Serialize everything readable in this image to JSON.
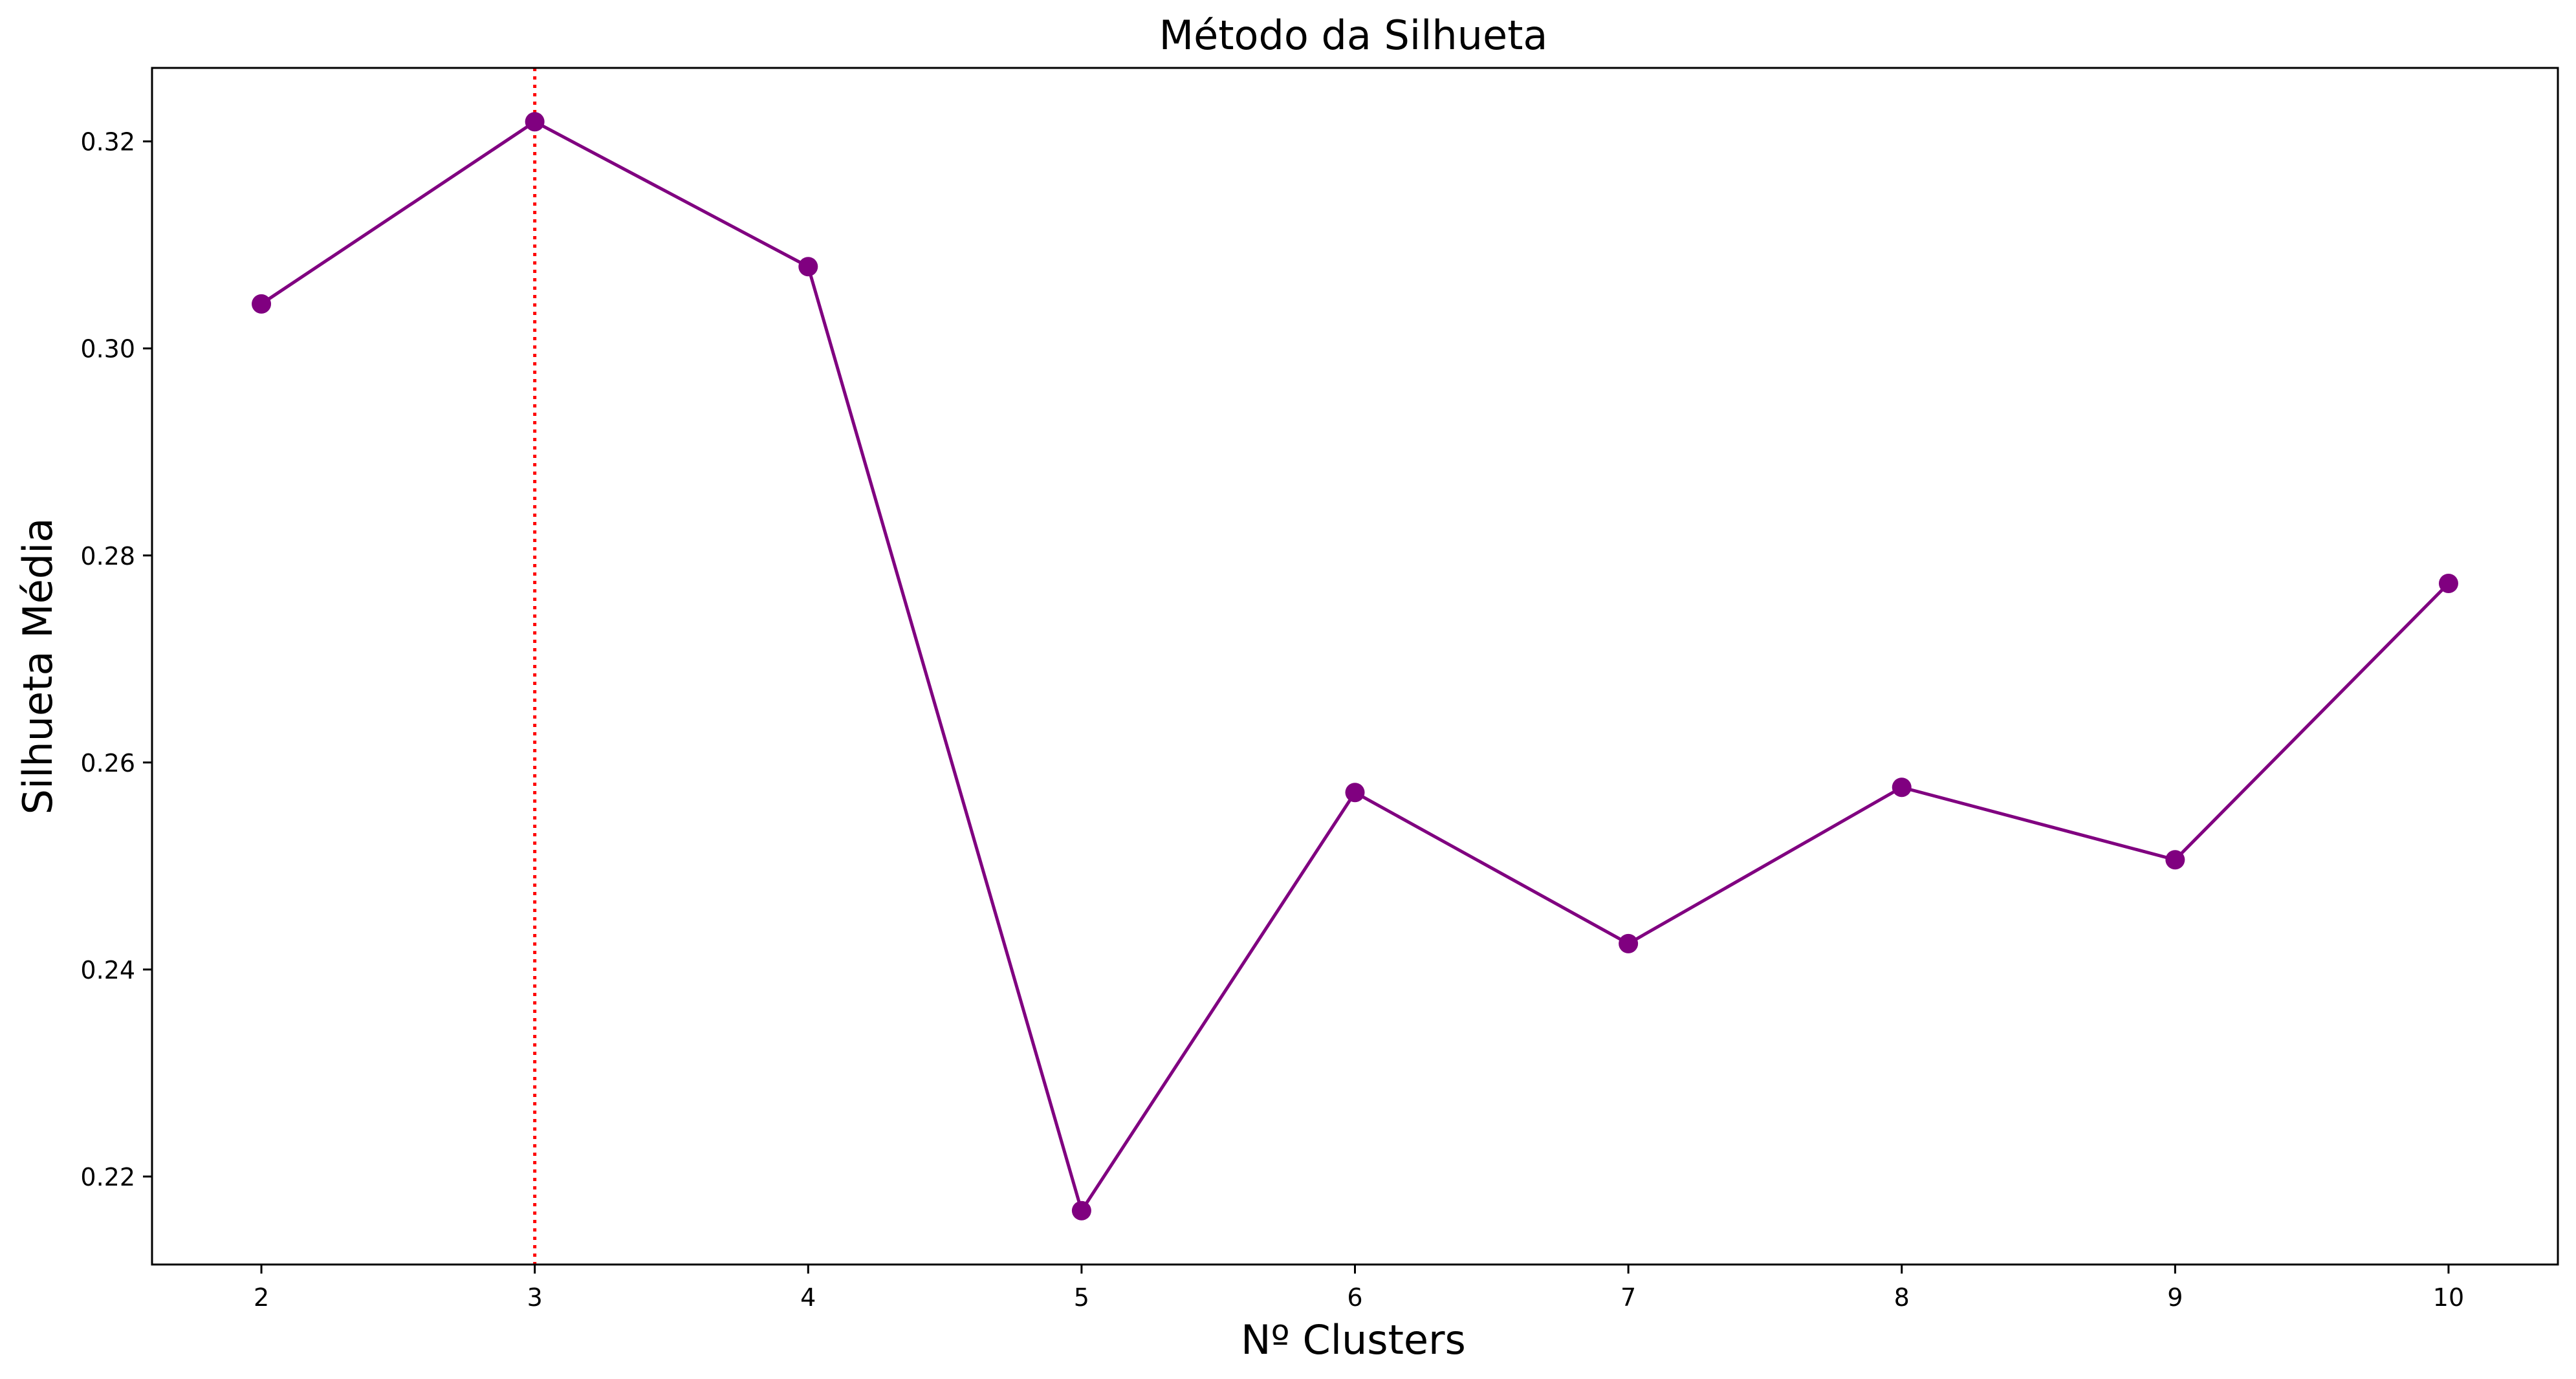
{
  "chart_data": {
    "type": "line",
    "title": "Método da Silhueta",
    "xlabel": "Nº Clusters",
    "ylabel": "Silhueta Média",
    "x": [
      2,
      3,
      4,
      5,
      6,
      7,
      8,
      9,
      10
    ],
    "series": [
      {
        "values": [
          0.3043,
          0.3219,
          0.3079,
          0.2167,
          0.2571,
          0.2425,
          0.2576,
          0.2506,
          0.2773
        ],
        "color": "#800080",
        "marker": "circle"
      }
    ],
    "xticks": [
      2,
      3,
      4,
      5,
      6,
      7,
      8,
      9,
      10
    ],
    "yticks": [
      0.22,
      0.24,
      0.26,
      0.28,
      0.3,
      0.32
    ],
    "ytick_labels": [
      "0.22",
      "0.24",
      "0.26",
      "0.28",
      "0.30",
      "0.32"
    ],
    "xlim": [
      1.6,
      10.4
    ],
    "ylim": [
      0.2115,
      0.3271
    ],
    "reference_line": {
      "orientation": "vertical",
      "x": 3,
      "color": "#ff0000",
      "style": "dotted"
    },
    "grid": false,
    "legend": "none"
  }
}
